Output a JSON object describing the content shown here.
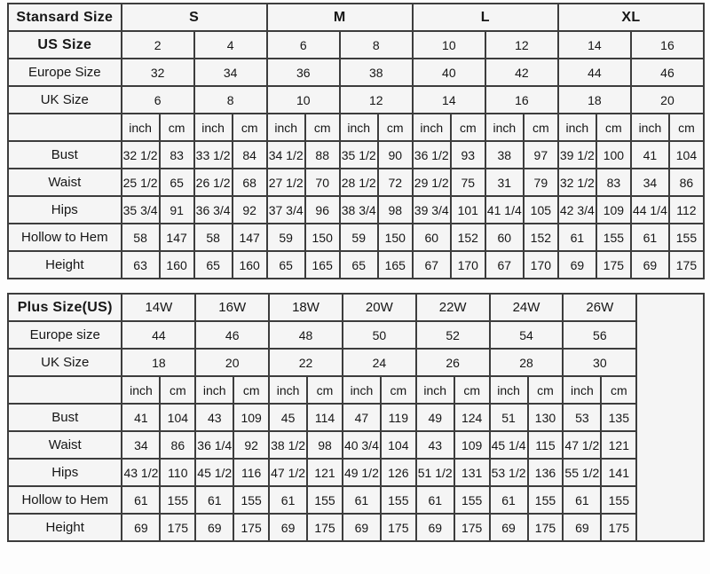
{
  "page": {
    "description_colors": {
      "border": "#3d3d3d",
      "cell_background": "#f5f5f5",
      "page_background": "#fdfdfd"
    }
  },
  "tables": [
    {
      "name": "standard-size-table",
      "corner_label": "Stansard Size",
      "size_groups": [
        "S",
        "M",
        "L",
        "XL"
      ],
      "size_group_span": 4,
      "size_groups_bold": true,
      "info_rows": [
        {
          "label": "US Size",
          "bold": true,
          "values": [
            "2",
            "4",
            "6",
            "8",
            "10",
            "12",
            "14",
            "16"
          ]
        },
        {
          "label": "Europe Size",
          "bold": false,
          "values": [
            "32",
            "34",
            "36",
            "38",
            "40",
            "42",
            "44",
            "46"
          ]
        },
        {
          "label": "UK Size",
          "bold": false,
          "values": [
            "6",
            "8",
            "10",
            "12",
            "14",
            "16",
            "18",
            "20"
          ]
        }
      ],
      "units": [
        "inch",
        "cm"
      ],
      "unit_repeat": 8,
      "measure_rows": [
        {
          "label": "Bust",
          "values": [
            "32 1/2",
            "83",
            "33 1/2",
            "84",
            "34 1/2",
            "88",
            "35 1/2",
            "90",
            "36 1/2",
            "93",
            "38",
            "97",
            "39 1/2",
            "100",
            "41",
            "104"
          ]
        },
        {
          "label": "Waist",
          "values": [
            "25 1/2",
            "65",
            "26 1/2",
            "68",
            "27 1/2",
            "70",
            "28 1/2",
            "72",
            "29 1/2",
            "75",
            "31",
            "79",
            "32 1/2",
            "83",
            "34",
            "86"
          ]
        },
        {
          "label": "Hips",
          "values": [
            "35 3/4",
            "91",
            "36 3/4",
            "92",
            "37 3/4",
            "96",
            "38 3/4",
            "98",
            "39 3/4",
            "101",
            "41 1/4",
            "105",
            "42 3/4",
            "109",
            "44 1/4",
            "112"
          ]
        },
        {
          "label": "Hollow to Hem",
          "values": [
            "58",
            "147",
            "58",
            "147",
            "59",
            "150",
            "59",
            "150",
            "60",
            "152",
            "60",
            "152",
            "61",
            "155",
            "61",
            "155"
          ]
        },
        {
          "label": "Height",
          "values": [
            "63",
            "160",
            "65",
            "160",
            "65",
            "165",
            "65",
            "165",
            "67",
            "170",
            "67",
            "170",
            "69",
            "175",
            "69",
            "175"
          ]
        }
      ],
      "trailing_empty_column": false
    },
    {
      "name": "plus-size-table",
      "corner_label": "Plus Size(US)",
      "size_groups": [
        "14W",
        "16W",
        "18W",
        "20W",
        "22W",
        "24W",
        "26W"
      ],
      "size_group_span": 2,
      "size_groups_bold": false,
      "info_rows": [
        {
          "label": "Europe size",
          "bold": false,
          "values": [
            "44",
            "46",
            "48",
            "50",
            "52",
            "54",
            "56"
          ]
        },
        {
          "label": "UK Size",
          "bold": false,
          "values": [
            "18",
            "20",
            "22",
            "24",
            "26",
            "28",
            "30"
          ]
        }
      ],
      "units": [
        "inch",
        "cm"
      ],
      "unit_repeat": 7,
      "measure_rows": [
        {
          "label": "Bust",
          "values": [
            "41",
            "104",
            "43",
            "109",
            "45",
            "114",
            "47",
            "119",
            "49",
            "124",
            "51",
            "130",
            "53",
            "135"
          ]
        },
        {
          "label": "Waist",
          "values": [
            "34",
            "86",
            "36 1/4",
            "92",
            "38 1/2",
            "98",
            "40 3/4",
            "104",
            "43",
            "109",
            "45 1/4",
            "115",
            "47 1/2",
            "121"
          ]
        },
        {
          "label": "Hips",
          "values": [
            "43 1/2",
            "110",
            "45 1/2",
            "116",
            "47 1/2",
            "121",
            "49 1/2",
            "126",
            "51 1/2",
            "131",
            "53 1/2",
            "136",
            "55 1/2",
            "141"
          ]
        },
        {
          "label": "Hollow to Hem",
          "values": [
            "61",
            "155",
            "61",
            "155",
            "61",
            "155",
            "61",
            "155",
            "61",
            "155",
            "61",
            "155",
            "61",
            "155"
          ]
        },
        {
          "label": "Height",
          "values": [
            "69",
            "175",
            "69",
            "175",
            "69",
            "175",
            "69",
            "175",
            "69",
            "175",
            "69",
            "175",
            "69",
            "175"
          ]
        }
      ],
      "trailing_empty_column": true
    }
  ]
}
